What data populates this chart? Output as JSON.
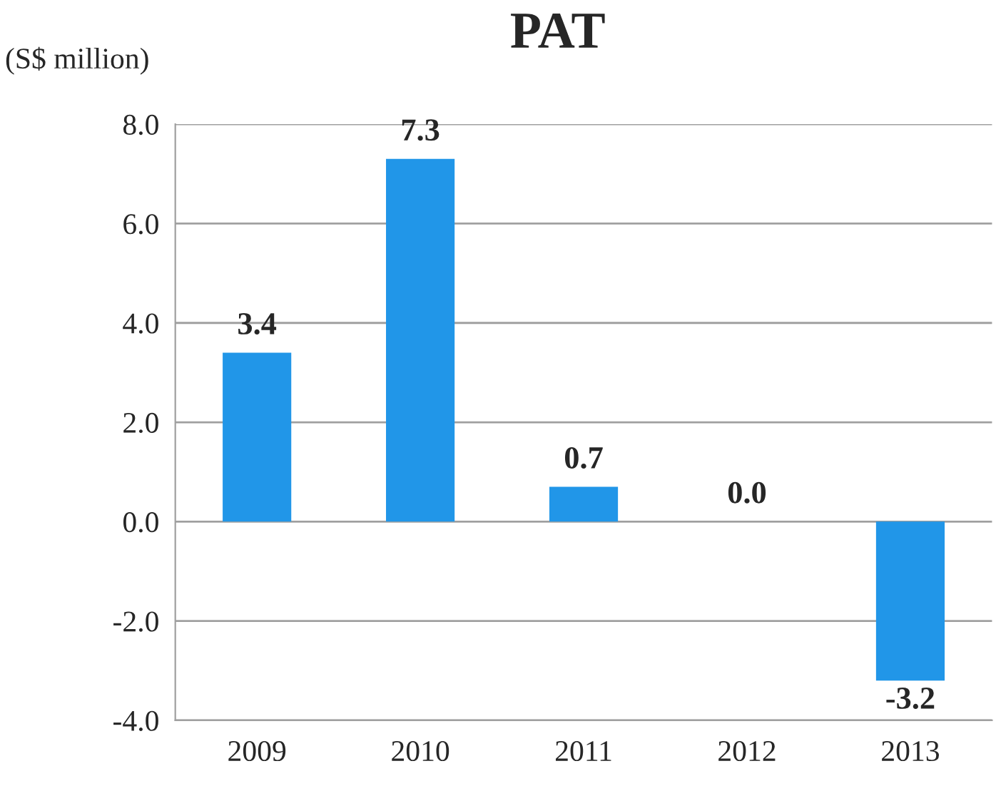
{
  "chart_data": {
    "type": "bar",
    "title": "PAT",
    "ylabel": "(S$ million)",
    "categories": [
      "2009",
      "2010",
      "2011",
      "2012",
      "2013"
    ],
    "values": [
      3.4,
      7.3,
      0.7,
      0.0,
      -3.2
    ],
    "value_labels": [
      "3.4",
      "7.3",
      "0.7",
      "0.0",
      "-3.2"
    ],
    "color": "#2196e8",
    "ylim": [
      -4.0,
      8.0
    ],
    "yticks": [
      {
        "value": -4.0,
        "label": "-4.0"
      },
      {
        "value": -2.0,
        "label": "-2.0"
      },
      {
        "value": 0.0,
        "label": "0.0"
      },
      {
        "value": 2.0,
        "label": "2.0"
      },
      {
        "value": 4.0,
        "label": "4.0"
      },
      {
        "value": 6.0,
        "label": "6.0"
      },
      {
        "value": 8.0,
        "label": "8.0"
      }
    ],
    "grid": "y",
    "legend": false
  }
}
